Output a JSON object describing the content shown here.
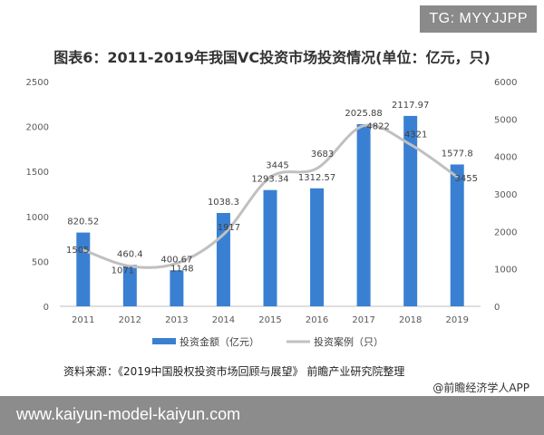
{
  "watermark_tag": "TG: MYYJJPP",
  "chart_data": {
    "type": "bar",
    "title": "图表6：2011-2019年我国VC投资市场投资情况(单位：亿元，只)",
    "categories": [
      "2011",
      "2012",
      "2013",
      "2014",
      "2015",
      "2016",
      "2017",
      "2018",
      "2019"
    ],
    "series": [
      {
        "name": "投资金额（亿元）",
        "type": "bar",
        "axis": "left",
        "color": "#3a80d2",
        "values": [
          820.52,
          460.4,
          400.67,
          1038.3,
          1293.34,
          1312.57,
          2025.88,
          2117.97,
          1577.8
        ],
        "labels": [
          "820.52",
          "460.4",
          "400.67",
          "1038.3",
          "1293.34",
          "1312.57",
          "2025.88",
          "2117.97",
          "1577.8"
        ]
      },
      {
        "name": "投资案例（只）",
        "type": "line",
        "axis": "right",
        "color": "#c0c0c0",
        "values": [
          1505,
          1071,
          1148,
          1917,
          3445,
          3683,
          4822,
          4321,
          3455
        ],
        "labels": [
          "1505",
          "1071",
          "1148",
          "1917",
          "3445",
          "3683",
          "4822",
          "4321",
          "3455"
        ]
      }
    ],
    "y_left": {
      "min": 0,
      "max": 2500,
      "ticks": [
        "0",
        "500",
        "1000",
        "1500",
        "2000",
        "2500"
      ]
    },
    "y_right": {
      "min": 0,
      "max": 6000,
      "ticks": [
        "0",
        "1000",
        "2000",
        "3000",
        "4000",
        "5000",
        "6000"
      ]
    },
    "grid": false,
    "legend_position": "bottom"
  },
  "source_text": "资料来源：《2019中国股权投资市场回顾与展望》 前瞻产业研究院整理",
  "brand_text": "@前瞻经济学人APP",
  "url_text": "www.kaiyun-model-kaiyun.com"
}
